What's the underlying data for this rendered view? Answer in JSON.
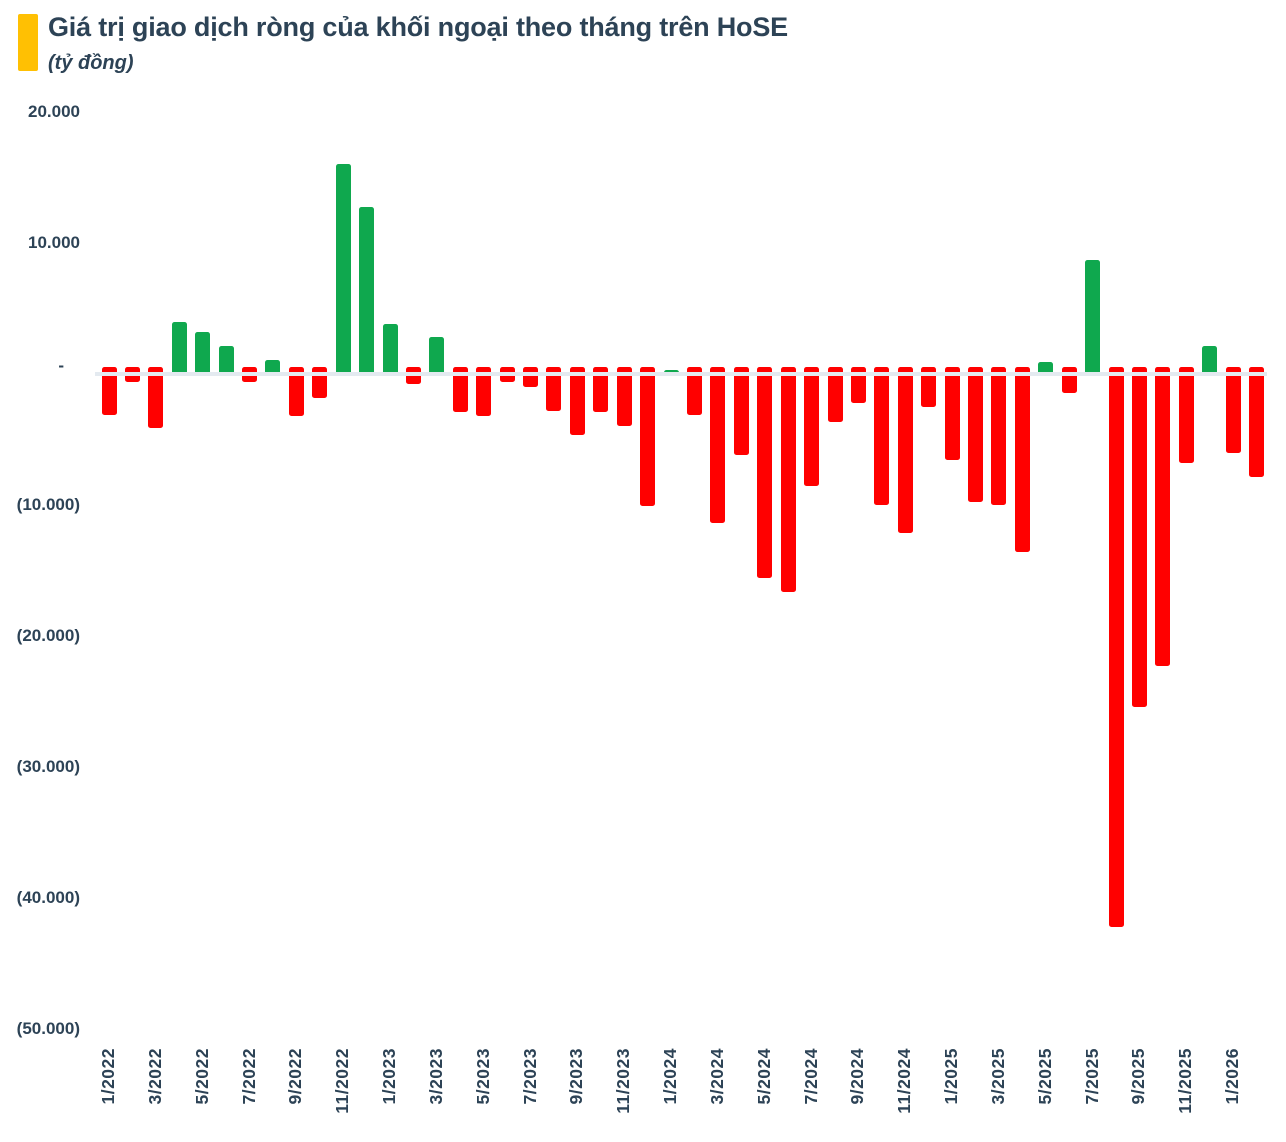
{
  "header": {
    "title": "Giá trị giao dịch ròng của khối ngoại theo tháng trên HoSE",
    "subtitle": "(tỷ đồng)"
  },
  "chart_data": {
    "type": "bar",
    "title": "Giá trị giao dịch ròng của khối ngoại theo tháng trên HoSE",
    "unit": "tỷ đồng",
    "categories": [
      "1/2022",
      "2/2022",
      "3/2022",
      "4/2022",
      "5/2022",
      "6/2022",
      "7/2022",
      "8/2022",
      "9/2022",
      "10/2022",
      "11/2022",
      "12/2022",
      "1/2023",
      "2/2023",
      "3/2023",
      "4/2023",
      "5/2023",
      "6/2023",
      "7/2023",
      "8/2023",
      "9/2023",
      "10/2023",
      "11/2023",
      "12/2023",
      "1/2024",
      "2/2024",
      "3/2024",
      "4/2024",
      "5/2024",
      "6/2024",
      "7/2024",
      "8/2024",
      "9/2024",
      "10/2024",
      "11/2024",
      "12/2024",
      "1/2025",
      "2/2025",
      "3/2025",
      "4/2025",
      "5/2025",
      "6/2025",
      "7/2025",
      "8/2025",
      "9/2025",
      "10/2025",
      "11/2025",
      "12/2025",
      "1/2026",
      "2/2026"
    ],
    "values": [
      -3100,
      -600,
      -4100,
      4000,
      3200,
      2100,
      -600,
      1100,
      -3200,
      -1800,
      16000,
      12750,
      3800,
      -800,
      2800,
      -2900,
      -3200,
      -600,
      -1000,
      -2800,
      -4650,
      -2900,
      -4000,
      -10100,
      300,
      -3100,
      -11400,
      -6200,
      -15600,
      -16650,
      -8550,
      -3700,
      -2200,
      -10000,
      -12100,
      -2500,
      -6600,
      -9750,
      -10000,
      -13600,
      900,
      -1450,
      8700,
      -42200,
      -25400,
      -22300,
      -6800,
      2100,
      -6000,
      -7900
    ],
    "x_tick_every": 2,
    "y_ticks": [
      {
        "label": "20.000",
        "value": 20000
      },
      {
        "label": "10.000",
        "value": 10000
      },
      {
        "label": "-",
        "value": 0
      },
      {
        "label": "(10.000)",
        "value": -10000
      },
      {
        "label": "(20.000)",
        "value": -20000
      },
      {
        "label": "(30.000)",
        "value": -30000
      },
      {
        "label": "(40.000)",
        "value": -40000
      },
      {
        "label": "(50.000)",
        "value": -50000
      }
    ],
    "ylim": [
      -50000,
      20000
    ],
    "grid": false,
    "legend": "none",
    "colors": {
      "positive": "#0fa84e",
      "negative": "#ff0000",
      "axis_line": "#e4eaf0",
      "text": "#2d4356",
      "accent": "#ffc003"
    }
  }
}
